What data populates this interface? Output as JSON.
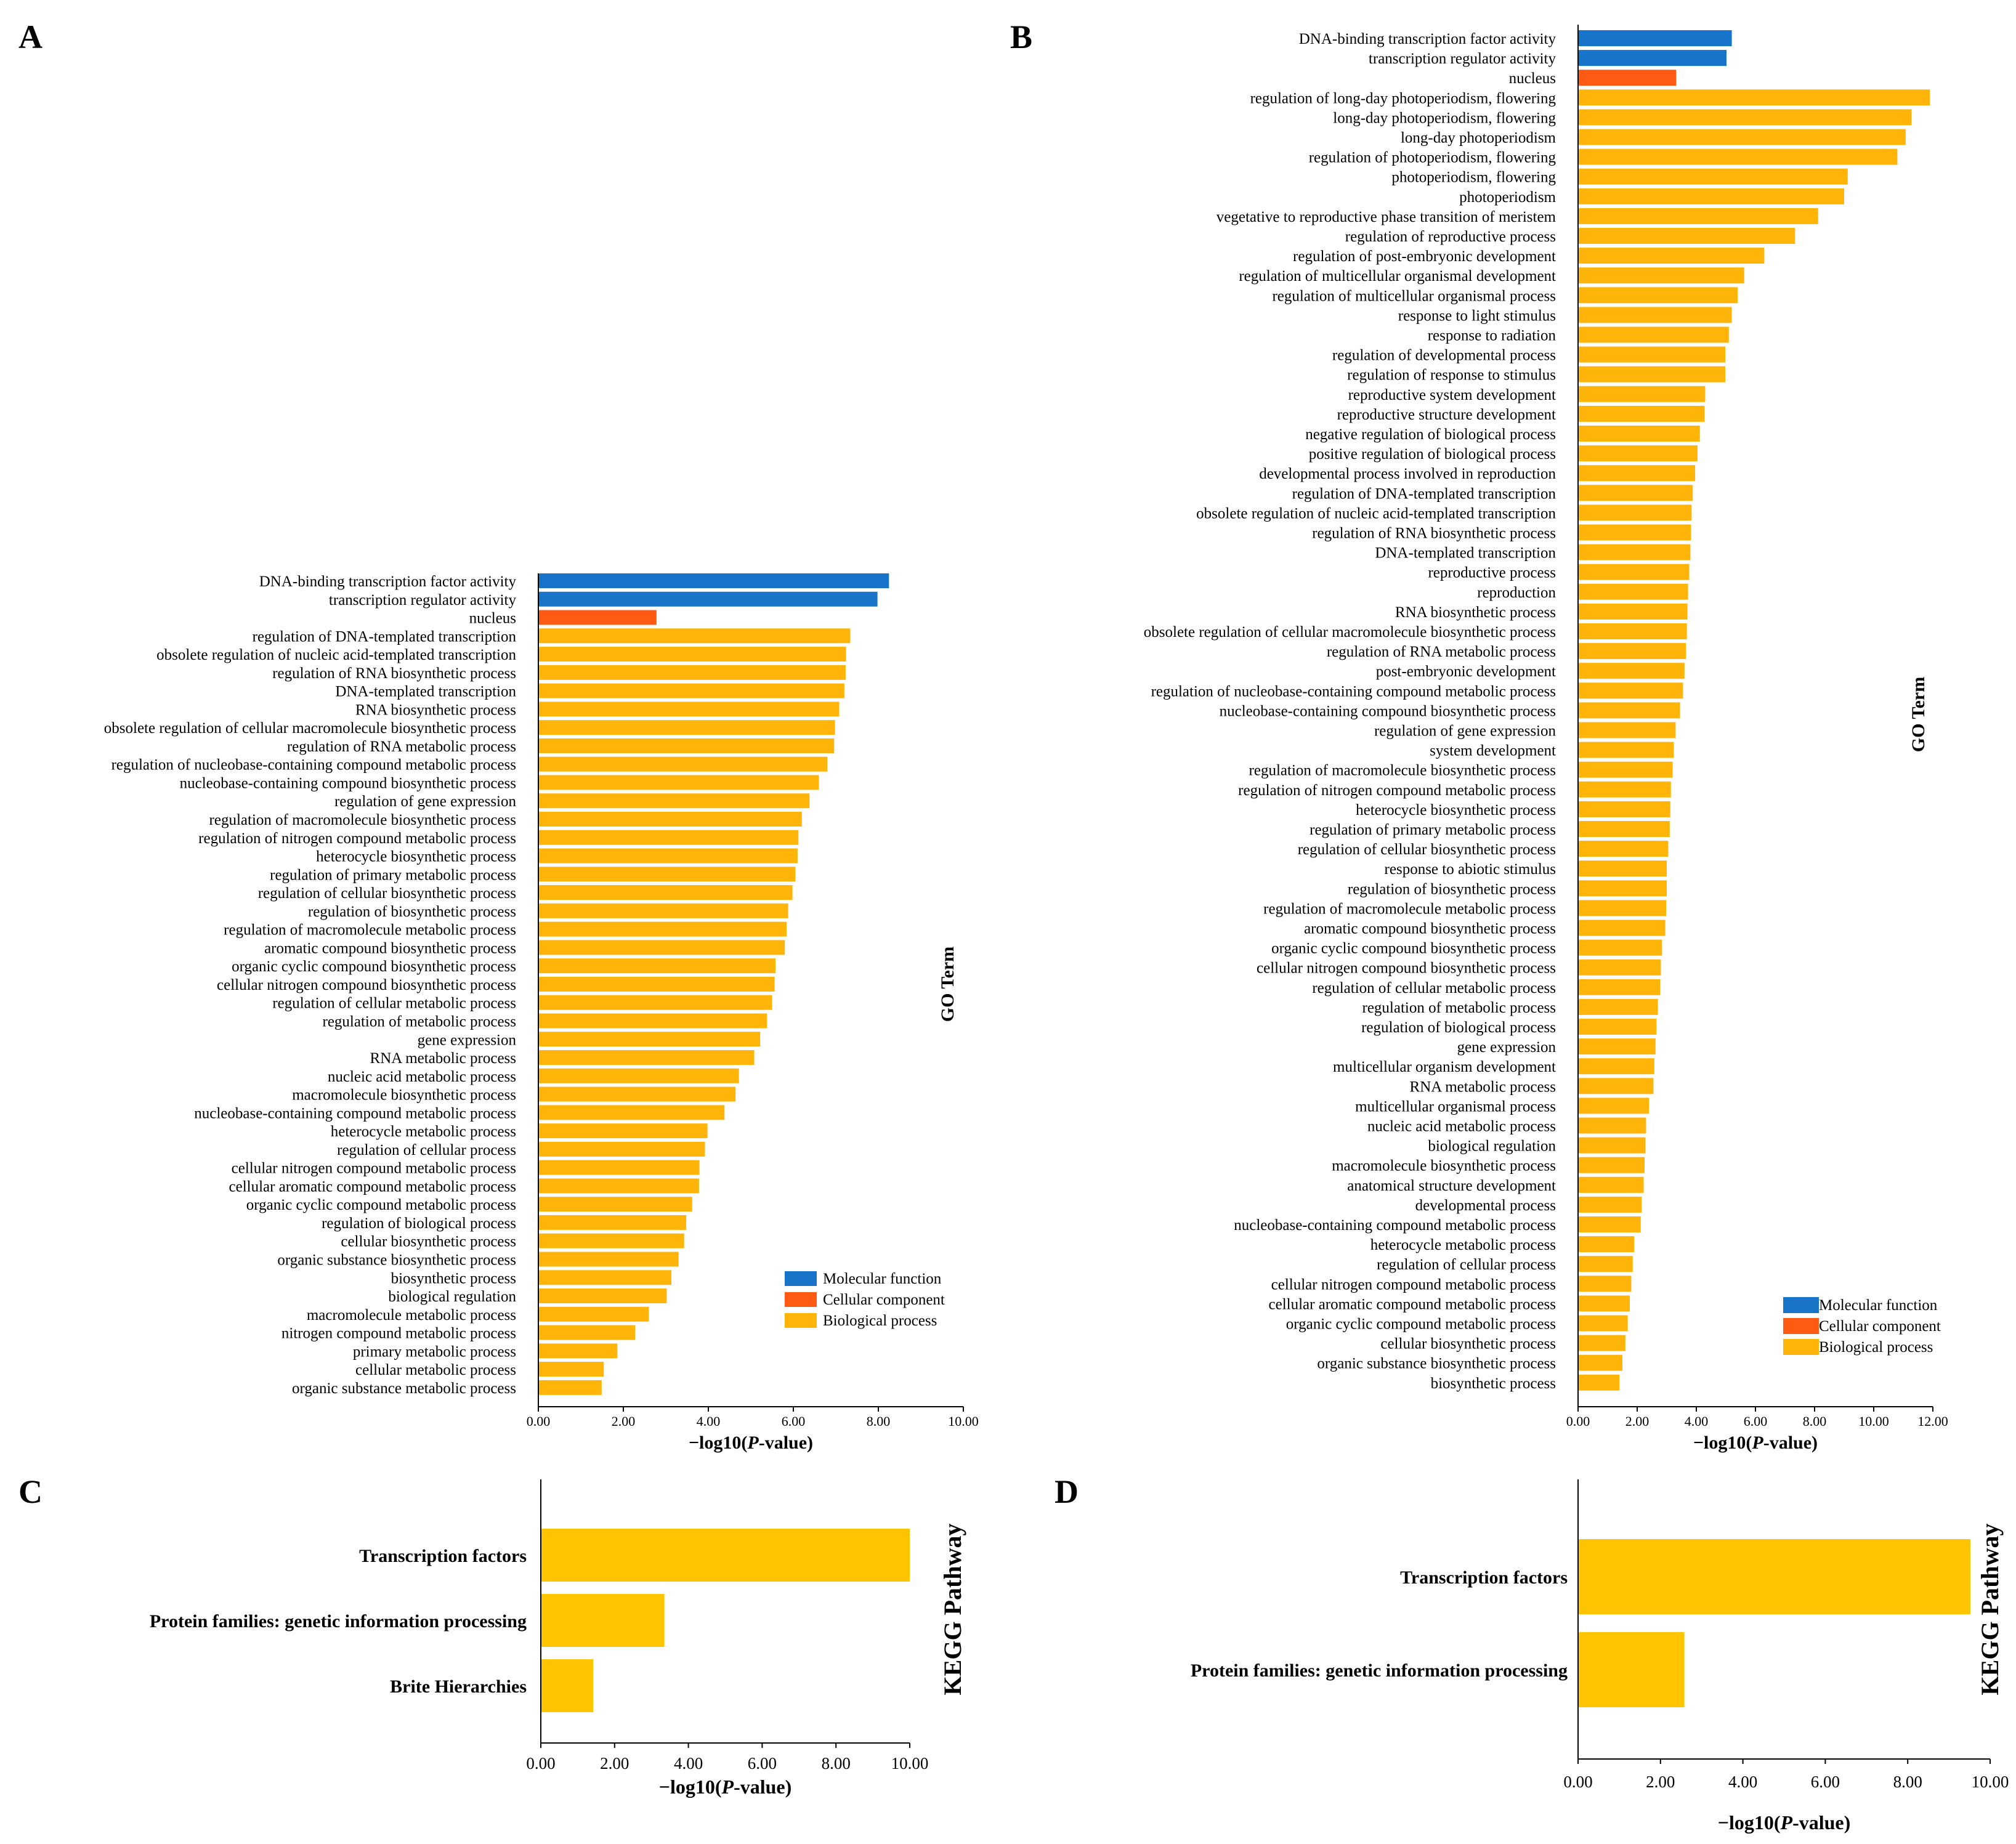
{
  "colors": {
    "molecular_function": "#1874C8",
    "cellular_component": "#FF5A14",
    "biological_process": "#FFB40A",
    "kegg": "#FFC400",
    "axis": "#000000"
  },
  "panels": {
    "a": "A",
    "b": "B",
    "c": "C",
    "d": "D"
  },
  "legend": {
    "molecular_function": "Molecular function",
    "cellular_component": "Cellular component",
    "biological_process": "Biological process"
  },
  "chart_data": [
    {
      "id": "A",
      "type": "bar",
      "orientation": "horizontal",
      "ylabel": "GO Term",
      "xlim": [
        0,
        10
      ],
      "xticks": [
        "0.00",
        "2.00",
        "4.00",
        "6.00",
        "8.00",
        "10.00"
      ],
      "legend_position": "bottom-right",
      "categories": [
        "DNA-binding transcription factor activity",
        "transcription regulator activity",
        "nucleus",
        "regulation of DNA-templated transcription",
        "obsolete regulation of nucleic acid-templated transcription",
        "regulation of RNA biosynthetic process",
        "DNA-templated transcription",
        "RNA biosynthetic process",
        "obsolete regulation of cellular macromolecule biosynthetic process",
        "regulation of RNA metabolic process",
        "regulation of nucleobase-containing compound metabolic process",
        "nucleobase-containing compound biosynthetic process",
        "regulation of gene expression",
        "regulation of macromolecule biosynthetic process",
        "regulation of nitrogen compound metabolic process",
        "heterocycle biosynthetic process",
        "regulation of primary metabolic process",
        "regulation of cellular biosynthetic process",
        "regulation of biosynthetic process",
        "regulation of macromolecule metabolic process",
        "aromatic compound biosynthetic process",
        "organic cyclic compound biosynthetic process",
        "cellular nitrogen compound biosynthetic process",
        "regulation of cellular metabolic process",
        "regulation of metabolic process",
        "gene expression",
        "RNA metabolic process",
        "nucleic acid metabolic process",
        "macromolecule biosynthetic process",
        "nucleobase-containing compound metabolic process",
        "heterocycle metabolic process",
        "regulation of cellular process",
        "cellular nitrogen compound metabolic process",
        "cellular aromatic compound metabolic process",
        "organic cyclic compound metabolic process",
        "regulation of biological process",
        "cellular biosynthetic process",
        "organic substance biosynthetic process",
        "biosynthetic process",
        "biological regulation",
        "macromolecule metabolic process",
        "nitrogen compound metabolic process",
        "primary metabolic process",
        "cellular metabolic process",
        "organic substance metabolic process"
      ],
      "values": [
        8.25,
        7.98,
        2.78,
        7.34,
        7.24,
        7.23,
        7.2,
        7.08,
        6.98,
        6.96,
        6.8,
        6.6,
        6.38,
        6.2,
        6.12,
        6.1,
        6.05,
        5.98,
        5.88,
        5.84,
        5.8,
        5.58,
        5.56,
        5.5,
        5.38,
        5.22,
        5.08,
        4.72,
        4.64,
        4.38,
        3.98,
        3.92,
        3.79,
        3.78,
        3.62,
        3.48,
        3.43,
        3.3,
        3.13,
        3.02,
        2.6,
        2.28,
        1.86,
        1.54,
        1.49
      ],
      "groups": [
        "molecular_function",
        "molecular_function",
        "cellular_component",
        "biological_process",
        "biological_process",
        "biological_process",
        "biological_process",
        "biological_process",
        "biological_process",
        "biological_process",
        "biological_process",
        "biological_process",
        "biological_process",
        "biological_process",
        "biological_process",
        "biological_process",
        "biological_process",
        "biological_process",
        "biological_process",
        "biological_process",
        "biological_process",
        "biological_process",
        "biological_process",
        "biological_process",
        "biological_process",
        "biological_process",
        "biological_process",
        "biological_process",
        "biological_process",
        "biological_process",
        "biological_process",
        "biological_process",
        "biological_process",
        "biological_process",
        "biological_process",
        "biological_process",
        "biological_process",
        "biological_process",
        "biological_process",
        "biological_process",
        "biological_process",
        "biological_process",
        "biological_process",
        "biological_process",
        "biological_process"
      ]
    },
    {
      "id": "B",
      "type": "bar",
      "orientation": "horizontal",
      "ylabel": "GO Term",
      "xlim": [
        0,
        12
      ],
      "xticks": [
        "0.00",
        "2.00",
        "4.00",
        "6.00",
        "8.00",
        "10.00",
        "12.00"
      ],
      "legend_position": "bottom-right",
      "categories": [
        "DNA-binding transcription factor activity",
        "transcription regulator activity",
        "nucleus",
        "regulation of long-day photoperiodism, flowering",
        "long-day photoperiodism, flowering",
        "long-day photoperiodism",
        "regulation of photoperiodism, flowering",
        "photoperiodism, flowering",
        "photoperiodism",
        "vegetative to reproductive phase transition of meristem",
        "regulation of reproductive process",
        "regulation of post-embryonic development",
        "regulation of multicellular organismal development",
        "regulation of multicellular organismal process",
        "response to light stimulus",
        "response to radiation",
        "regulation of developmental process",
        "regulation of response to stimulus",
        "reproductive system development",
        "reproductive structure development",
        "negative regulation of biological process",
        "positive regulation of biological process",
        "developmental process involved in reproduction",
        "regulation of DNA-templated transcription",
        "obsolete regulation of nucleic acid-templated transcription",
        "regulation of RNA biosynthetic process",
        "DNA-templated transcription",
        "reproductive process",
        "reproduction",
        "RNA biosynthetic process",
        "obsolete regulation of cellular macromolecule biosynthetic process",
        "regulation of RNA metabolic process",
        "post-embryonic development",
        "regulation of nucleobase-containing compound metabolic process",
        "nucleobase-containing compound biosynthetic process",
        "regulation of gene expression",
        "system development",
        "regulation of macromolecule biosynthetic process",
        "regulation of nitrogen compound metabolic process",
        "heterocycle biosynthetic process",
        "regulation of primary metabolic process",
        "regulation of cellular biosynthetic process",
        "response to abiotic stimulus",
        "regulation of biosynthetic process",
        "regulation of macromolecule metabolic process",
        "aromatic compound biosynthetic process",
        "organic cyclic compound biosynthetic process",
        "cellular nitrogen compound biosynthetic process",
        "regulation of cellular metabolic process",
        "regulation of metabolic process",
        "regulation of biological process",
        "gene expression",
        "multicellular organism development",
        "RNA metabolic process",
        "multicellular organismal process",
        "nucleic acid metabolic process",
        "biological regulation",
        "macromolecule biosynthetic process",
        "anatomical structure development",
        "developmental process",
        "nucleobase-containing compound metabolic process",
        "heterocycle metabolic process",
        "regulation of cellular process",
        "cellular nitrogen compound metabolic process",
        "cellular aromatic compound metabolic process",
        "organic cyclic compound metabolic process",
        "cellular biosynthetic process",
        "organic substance biosynthetic process",
        "biosynthetic process"
      ],
      "values": [
        5.2,
        5.02,
        3.32,
        11.9,
        11.28,
        11.08,
        10.8,
        9.12,
        9.0,
        8.12,
        7.34,
        6.3,
        5.62,
        5.4,
        5.2,
        5.1,
        4.98,
        4.98,
        4.3,
        4.28,
        4.12,
        4.04,
        3.96,
        3.88,
        3.84,
        3.82,
        3.8,
        3.76,
        3.72,
        3.7,
        3.68,
        3.65,
        3.6,
        3.55,
        3.45,
        3.3,
        3.24,
        3.2,
        3.14,
        3.12,
        3.1,
        3.05,
        3.0,
        3.0,
        2.98,
        2.95,
        2.84,
        2.8,
        2.78,
        2.7,
        2.65,
        2.62,
        2.58,
        2.55,
        2.4,
        2.3,
        2.28,
        2.25,
        2.22,
        2.15,
        2.12,
        1.9,
        1.85,
        1.8,
        1.75,
        1.68,
        1.6,
        1.5,
        1.4
      ],
      "groups": [
        "molecular_function",
        "molecular_function",
        "cellular_component",
        "biological_process",
        "biological_process",
        "biological_process",
        "biological_process",
        "biological_process",
        "biological_process",
        "biological_process",
        "biological_process",
        "biological_process",
        "biological_process",
        "biological_process",
        "biological_process",
        "biological_process",
        "biological_process",
        "biological_process",
        "biological_process",
        "biological_process",
        "biological_process",
        "biological_process",
        "biological_process",
        "biological_process",
        "biological_process",
        "biological_process",
        "biological_process",
        "biological_process",
        "biological_process",
        "biological_process",
        "biological_process",
        "biological_process",
        "biological_process",
        "biological_process",
        "biological_process",
        "biological_process",
        "biological_process",
        "biological_process",
        "biological_process",
        "biological_process",
        "biological_process",
        "biological_process",
        "biological_process",
        "biological_process",
        "biological_process",
        "biological_process",
        "biological_process",
        "biological_process",
        "biological_process",
        "biological_process",
        "biological_process",
        "biological_process",
        "biological_process",
        "biological_process",
        "biological_process",
        "biological_process",
        "biological_process",
        "biological_process",
        "biological_process",
        "biological_process",
        "biological_process",
        "biological_process",
        "biological_process",
        "biological_process",
        "biological_process",
        "biological_process",
        "biological_process",
        "biological_process",
        "biological_process"
      ]
    },
    {
      "id": "C",
      "type": "bar",
      "orientation": "horizontal",
      "ylabel": "KEGG Pathway",
      "xlim": [
        0,
        10
      ],
      "xticks": [
        "0.00",
        "2.00",
        "4.00",
        "6.00",
        "8.00",
        "10.00"
      ],
      "categories": [
        "Transcription factors",
        "Protein families: genetic information processing",
        "Brite Hierarchies"
      ],
      "values": [
        10.0,
        3.35,
        1.42
      ]
    },
    {
      "id": "D",
      "type": "bar",
      "orientation": "horizontal",
      "ylabel": "KEGG Pathway",
      "xlim": [
        0,
        10
      ],
      "xticks": [
        "0.00",
        "2.00",
        "4.00",
        "6.00",
        "8.00",
        "10.00"
      ],
      "categories": [
        "Transcription factors",
        "Protein families: genetic information processing"
      ],
      "values": [
        9.52,
        2.58
      ]
    }
  ]
}
